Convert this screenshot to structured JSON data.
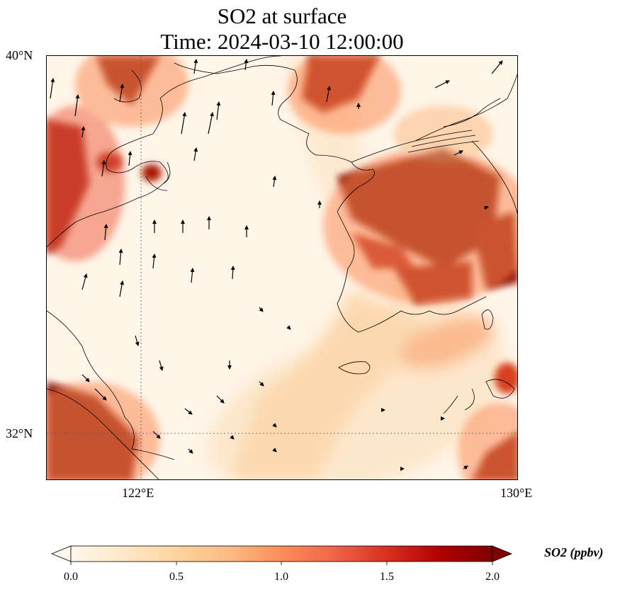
{
  "title": {
    "line1": "SO2 at surface",
    "line2": "Time: 2024-03-10 12:00:00"
  },
  "axes": {
    "lat_labels": [
      "40°N",
      "32°N"
    ],
    "lon_labels": [
      "122°E",
      "130°E"
    ],
    "lat_range": [
      31,
      40
    ],
    "lon_range": [
      120,
      130
    ]
  },
  "colorbar": {
    "title": "SO2 (ppbv)",
    "tick_labels": [
      "0.0",
      "0.5",
      "1.0",
      "1.5",
      "2.0"
    ],
    "range": [
      0,
      2.0
    ],
    "extend": "both",
    "colormap": [
      "#fff7ec",
      "#fee8c8",
      "#fdd49e",
      "#fdbb84",
      "#fc8d59",
      "#ef6548",
      "#d7301f",
      "#b30000",
      "#7f0000"
    ]
  },
  "map": {
    "background_color": "#fff5e8",
    "coastline_color": "#000000",
    "gridline_style": "dotted"
  }
}
